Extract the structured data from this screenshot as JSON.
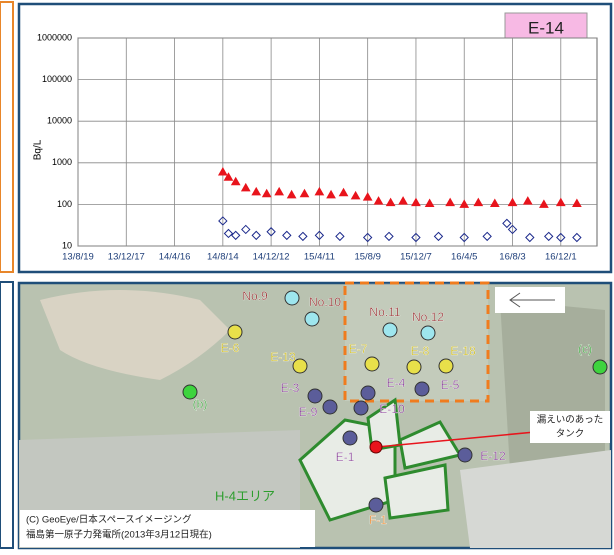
{
  "chart_data": {
    "type": "scatter",
    "title": "E-14",
    "y_label": "Bq/L",
    "log_y": true,
    "grid": true,
    "ylim": [
      10,
      1000000
    ],
    "yticks": [
      10,
      100,
      1000,
      10000,
      100000,
      1000000
    ],
    "xlim": [
      "13/8/19",
      "17/3/1"
    ],
    "xticks": [
      "13/8/19",
      "13/12/17",
      "14/4/16",
      "14/8/14",
      "14/12/12",
      "15/4/11",
      "15/8/9",
      "15/12/7",
      "16/4/5",
      "16/8/3",
      "16/12/1"
    ],
    "series": [
      {
        "color": "#e8141c",
        "marker": "triangle",
        "x": [
          "14/8/14",
          "14/8/28",
          "14/9/15",
          "14/10/10",
          "14/11/5",
          "14/12/1",
          "15/1/1",
          "15/2/1",
          "15/3/5",
          "15/4/11",
          "15/5/10",
          "15/6/10",
          "15/7/10",
          "15/8/9",
          "15/9/5",
          "15/10/5",
          "15/11/5",
          "15/12/7",
          "16/1/10",
          "16/3/1",
          "16/4/5",
          "16/5/10",
          "16/6/20",
          "16/8/3",
          "16/9/10",
          "16/10/20",
          "16/12/1",
          "17/1/10"
        ],
        "values": [
          600,
          450,
          350,
          250,
          200,
          180,
          200,
          170,
          180,
          200,
          170,
          190,
          160,
          150,
          120,
          110,
          120,
          110,
          105,
          110,
          100,
          110,
          105,
          110,
          120,
          100,
          110,
          105
        ]
      },
      {
        "color": "#1c2a8c",
        "marker": "diamond",
        "x": [
          "14/8/14",
          "14/8/28",
          "14/9/15",
          "14/10/10",
          "14/11/5",
          "14/12/12",
          "15/1/20",
          "15/3/1",
          "15/4/11",
          "15/6/1",
          "15/8/9",
          "15/10/1",
          "15/12/7",
          "16/2/1",
          "16/4/5",
          "16/6/1",
          "16/7/20",
          "16/8/3",
          "16/9/15",
          "16/11/1",
          "16/12/1",
          "17/1/10"
        ],
        "values": [
          40,
          20,
          18,
          25,
          18,
          22,
          18,
          17,
          18,
          17,
          16,
          17,
          16,
          17,
          16,
          17,
          35,
          25,
          16,
          17,
          16,
          16
        ]
      }
    ]
  },
  "map": {
    "points": [
      "No.9",
      "No.10",
      "No.11",
      "No.12",
      "E-6",
      "E-13",
      "E-7",
      "E-8",
      "E-18",
      "E-3",
      "E-4",
      "E-5",
      "E-9",
      "E-10",
      "E-1",
      "E-12",
      "F-1",
      "(b)",
      "(c)"
    ],
    "leak_label": [
      "漏えいのあった",
      "タンク"
    ],
    "area_label": "H-4エリア",
    "credit": [
      "(C) GeoEye/日本スペースイメージング",
      "福島第一原子力発電所(2013年3月12日現在)"
    ]
  }
}
